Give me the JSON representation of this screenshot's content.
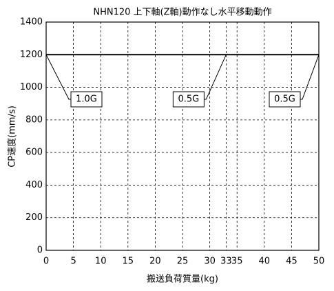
{
  "chart_data": {
    "type": "line",
    "title": "NHN120 上下軸(Z軸)動作なし水平移動動作",
    "x_label": "搬送負荷質量(kg)",
    "y_label": "CP速度(mm/s)",
    "x": [
      0,
      33,
      50
    ],
    "series": [
      {
        "name": "CP速度",
        "color": "#000000",
        "values": [
          1200,
          1200,
          1200
        ]
      }
    ],
    "xlim": [
      0,
      50
    ],
    "xticks": [
      0,
      5,
      10,
      15,
      20,
      25,
      30,
      33,
      35,
      40,
      45,
      50
    ],
    "ylim": [
      0,
      1400
    ],
    "yticks": [
      0,
      200,
      400,
      600,
      800,
      1000,
      1200,
      1400
    ],
    "grid": true,
    "annotations": [
      {
        "text": "1.0G",
        "x": 0,
        "y": 1200
      },
      {
        "text": "0.5G",
        "x": 33,
        "y": 1200
      },
      {
        "text": "0.5G",
        "x": 50,
        "y": 1200
      }
    ]
  }
}
